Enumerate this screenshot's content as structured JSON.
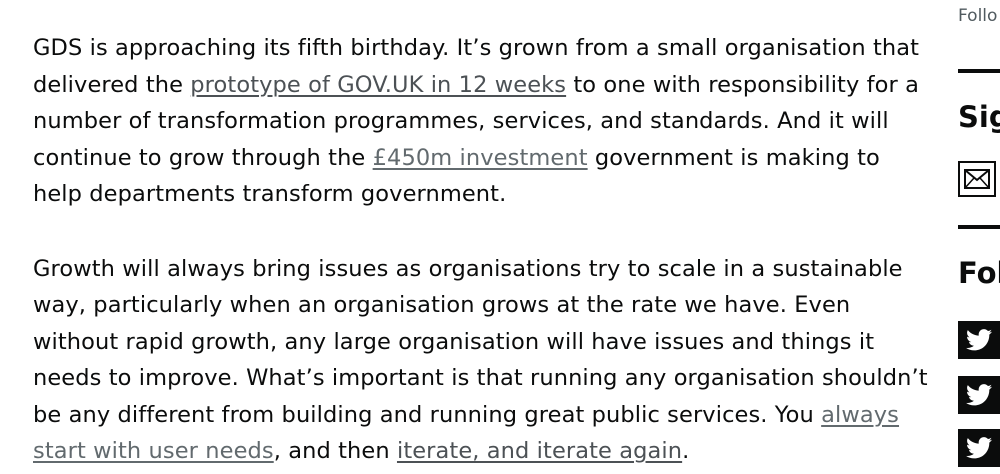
{
  "article": {
    "p1": {
      "t1": "GDS is approaching its fifth birthday. It’s grown from a small organisation that delivered the ",
      "link1": "prototype of GOV.UK in 12 weeks",
      "t2": " to one with responsibility for a number of transformation programmes, services, and standards. And it will continue to grow through the ",
      "link2": "£450m investment",
      "t3": " government is making to help departments transform government."
    },
    "p2": {
      "t1": "Growth will always bring issues as organisations try to scale in a sustainable way, particularly when an organisation grows at the rate we have. Even without rapid growth, any large organisation will have issues and things it needs to improve. What’s important is that running any organisation shouldn’t be any different from building and running great public services. You ",
      "link1": "always start with user needs",
      "t2": ", and then ",
      "link2": "iterate, and iterate again",
      "t3": "."
    }
  },
  "sidebar": {
    "follow_text": "Follo",
    "signup_heading": "Sig",
    "follow_heading": "Fol",
    "email_icon": "envelope-icon",
    "twitter_icon": "twitter-bird-icon"
  }
}
